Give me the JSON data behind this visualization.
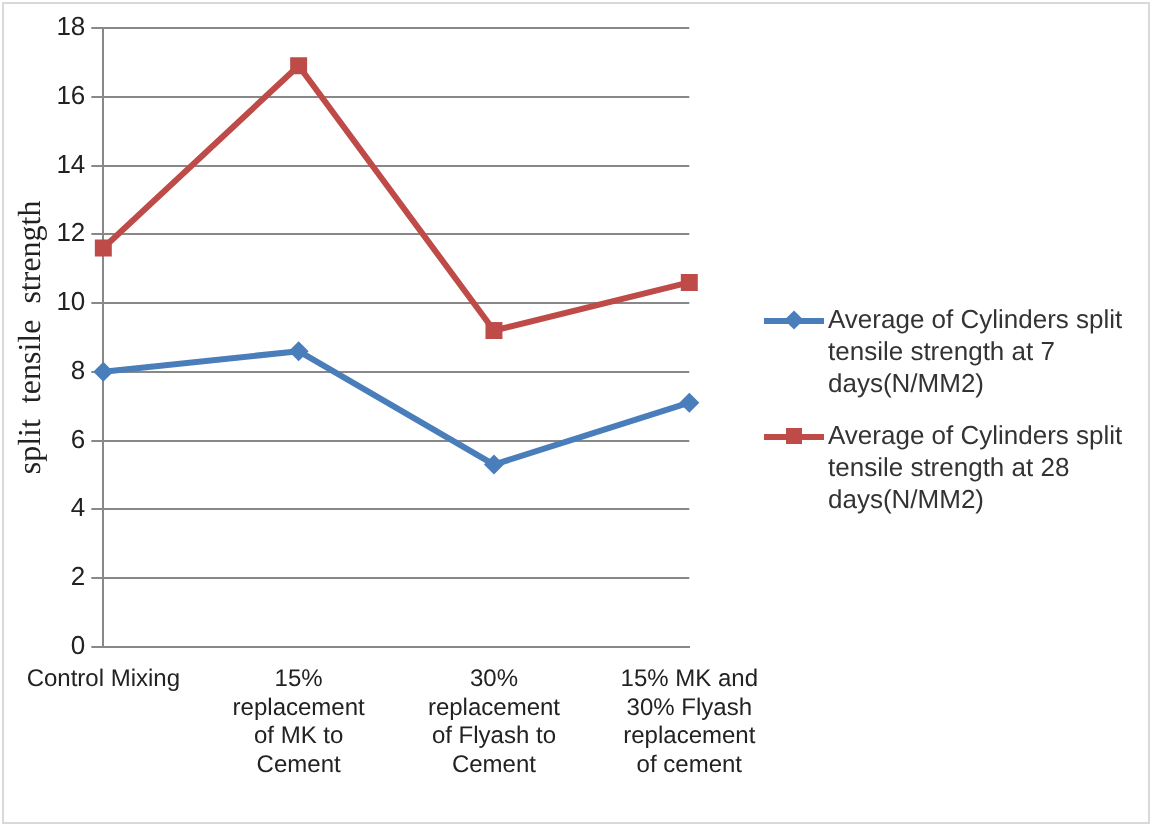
{
  "chart_data": {
    "type": "line",
    "ylabel": "split  tensile  strength",
    "categories": [
      "Control Mixing",
      "15% replacement of MK to Cement",
      "30% replacement of Flyash to Cement",
      "15% MK and 30% Flyash replacement of cement"
    ],
    "series": [
      {
        "name": "Average of Cylinders split tensile strength at 7 days(N/MM2)",
        "color": "#4a7ebb",
        "marker": "diamond",
        "values": [
          8.0,
          8.6,
          5.3,
          7.1
        ]
      },
      {
        "name": "Average of Cylinders split tensile strength at 28 days(N/MM2)",
        "color": "#be4b48",
        "marker": "square",
        "values": [
          11.6,
          16.9,
          9.2,
          10.6
        ]
      }
    ],
    "ylim": [
      0,
      18
    ],
    "yticks": [
      0,
      2,
      4,
      6,
      8,
      10,
      12,
      14,
      16,
      18
    ],
    "grid": "y",
    "legend": "right",
    "line_style": "solid"
  }
}
